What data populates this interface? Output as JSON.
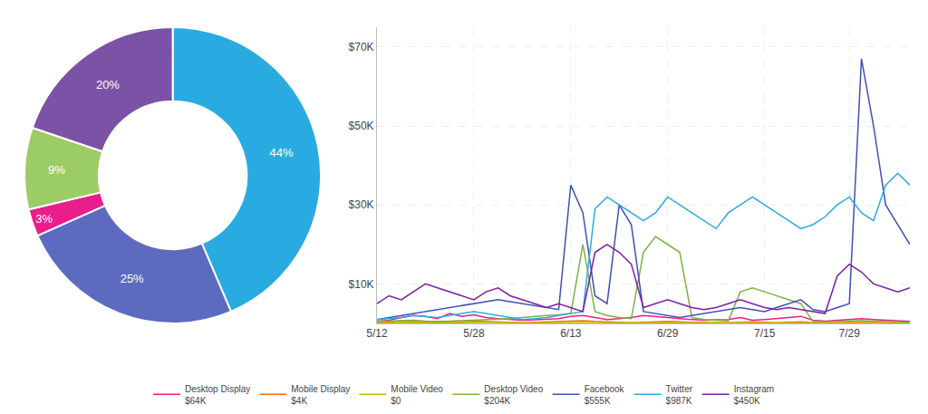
{
  "chart_data": [
    {
      "type": "pie",
      "values": [
        44,
        25,
        3,
        9,
        20
      ],
      "value_labels": [
        "44%",
        "25%",
        "3%",
        "9%",
        "20%"
      ],
      "colors": [
        "#29ABE2",
        "#5C6BC0",
        "#E91E8C",
        "#9CCC65",
        "#7B52A6"
      ],
      "data_labels": true
    },
    {
      "type": "line",
      "x": [
        0,
        2,
        4,
        6,
        8,
        10,
        12,
        14,
        16,
        18,
        20,
        22,
        24,
        26,
        28,
        30,
        32,
        34,
        36,
        38,
        40,
        42,
        44,
        46,
        48,
        50,
        52,
        54,
        56,
        58,
        60,
        62,
        64,
        66,
        68,
        70,
        72,
        74,
        76,
        78,
        80,
        82,
        84,
        86,
        88
      ],
      "xlim": [
        0,
        88
      ],
      "xticks": [
        {
          "value": 0,
          "label": "5/12"
        },
        {
          "value": 16,
          "label": "5/28"
        },
        {
          "value": 32,
          "label": "6/13"
        },
        {
          "value": 48,
          "label": "6/29"
        },
        {
          "value": 64,
          "label": "7/15"
        },
        {
          "value": 78,
          "label": "7/29"
        }
      ],
      "ylim": [
        0,
        75000
      ],
      "yticks": [
        {
          "value": 10000,
          "label": "$10K"
        },
        {
          "value": 30000,
          "label": "$30K"
        },
        {
          "value": 50000,
          "label": "$50K"
        },
        {
          "value": 70000,
          "label": "$70K"
        }
      ],
      "grid": true,
      "legend": "bottom",
      "series": [
        {
          "name": "Desktop Display",
          "sublabel": "$64K",
          "color": "#E91E8C",
          "values": [
            500,
            800,
            1500,
            2000,
            1800,
            1200,
            2500,
            1800,
            2200,
            1500,
            1200,
            1000,
            800,
            900,
            1000,
            1200,
            1800,
            2000,
            1500,
            1000,
            1200,
            1500,
            2000,
            1800,
            1500,
            1200,
            1000,
            800,
            900,
            1000,
            1500,
            800,
            1000,
            1200,
            1500,
            1800,
            800,
            600,
            800,
            1000,
            1200,
            1000,
            800,
            600,
            500
          ]
        },
        {
          "name": "Mobile Display",
          "sublabel": "$4K",
          "color": "#FF6D00",
          "values": [
            200,
            400,
            600,
            500,
            400,
            300,
            500,
            400,
            600,
            500,
            400,
            300,
            200,
            300,
            400,
            500,
            600,
            700,
            500,
            400,
            300,
            200,
            300,
            400,
            500,
            400,
            300,
            200,
            150,
            200,
            300,
            400,
            300,
            200,
            300,
            400,
            200,
            150,
            200,
            250,
            300,
            250,
            200,
            150,
            100
          ]
        },
        {
          "name": "Mobile Video",
          "sublabel": "$0",
          "color": "#C6B800",
          "values": [
            100,
            200,
            300,
            250,
            200,
            150,
            100,
            200,
            300,
            250,
            200,
            150,
            100,
            150,
            200,
            250,
            300,
            350,
            250,
            200,
            150,
            100,
            150,
            200,
            250,
            200,
            150,
            100,
            80,
            100,
            150,
            200,
            150,
            100,
            150,
            200,
            100,
            80,
            100,
            120,
            150,
            120,
            100,
            80,
            60
          ]
        },
        {
          "name": "Desktop Video",
          "sublabel": "$204K",
          "color": "#7CB342",
          "values": [
            500,
            600,
            700,
            800,
            600,
            500,
            600,
            700,
            800,
            900,
            1000,
            1200,
            1500,
            1800,
            2000,
            2200,
            2500,
            20000,
            3000,
            2000,
            1500,
            1200,
            18000,
            22000,
            20000,
            18000,
            1500,
            1000,
            800,
            600,
            8000,
            9000,
            8000,
            7000,
            6000,
            5000,
            500,
            400,
            500,
            600,
            700,
            600,
            500,
            400,
            300
          ]
        },
        {
          "name": "Facebook",
          "sublabel": "$555K",
          "color": "#3F51B5",
          "values": [
            1000,
            1500,
            2000,
            2500,
            3000,
            3500,
            4000,
            4500,
            5000,
            5500,
            6000,
            5500,
            5000,
            4500,
            4000,
            3500,
            35000,
            28000,
            7000,
            5000,
            30000,
            25000,
            3000,
            2500,
            2000,
            1500,
            2000,
            2500,
            3000,
            3500,
            4000,
            3500,
            3000,
            4000,
            5000,
            6000,
            3500,
            3000,
            4000,
            5000,
            67000,
            50000,
            30000,
            25000,
            20000
          ]
        },
        {
          "name": "Twitter",
          "sublabel": "$987K",
          "color": "#29ABE2",
          "values": [
            1000,
            1200,
            1500,
            2000,
            1800,
            1500,
            2000,
            2500,
            3000,
            2500,
            2000,
            1500,
            1000,
            1200,
            1500,
            2000,
            2500,
            3000,
            29000,
            32000,
            30000,
            28000,
            26000,
            28000,
            32000,
            30000,
            28000,
            26000,
            24000,
            28000,
            30000,
            32000,
            30000,
            28000,
            26000,
            24000,
            25000,
            27000,
            30000,
            32000,
            28000,
            26000,
            35000,
            38000,
            35000
          ]
        },
        {
          "name": "Instagram",
          "sublabel": "$450K",
          "color": "#7B1FA2",
          "values": [
            5000,
            7000,
            6000,
            8000,
            10000,
            9000,
            8000,
            7000,
            6000,
            8000,
            9000,
            7000,
            6000,
            5000,
            4000,
            5000,
            4000,
            3000,
            18000,
            20000,
            18000,
            15000,
            4000,
            5000,
            6000,
            5000,
            4000,
            3500,
            4000,
            5000,
            6000,
            5000,
            4000,
            3500,
            4000,
            3500,
            3000,
            2500,
            12000,
            15000,
            13000,
            10000,
            9000,
            8000,
            9000
          ]
        }
      ]
    }
  ]
}
